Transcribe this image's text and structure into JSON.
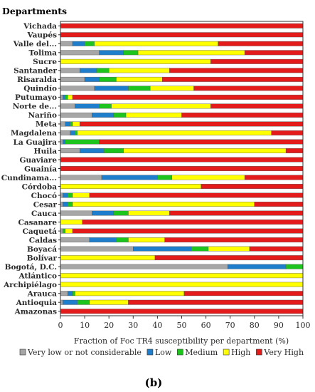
{
  "chart_data": {
    "type": "bar",
    "stacked": true,
    "orientation": "horizontal",
    "title": "Departments",
    "xlabel": "Fraction of Foc TR4 susceptibility per department (%)",
    "xlim": [
      0,
      100
    ],
    "xticks": [
      0,
      10,
      20,
      30,
      40,
      50,
      60,
      70,
      80,
      90,
      100
    ],
    "legend_position": "bottom",
    "caption": "(b)",
    "categories": [
      "Vichada",
      "Vaupés",
      "Valle del...",
      "Tolima",
      "Sucre",
      "Santander",
      "Risaralda",
      "Quindío",
      "Putumayo",
      "Norte de...",
      "Nariño",
      "Meta",
      "Magdalena",
      "La Guajira",
      "Huila",
      "Guaviare",
      "Guainía",
      "Cundinama...",
      "Córdoba",
      "Chocó",
      "Cesar",
      "Cauca",
      "Casanare",
      "Caquetá",
      "Caldas",
      "Boyacá",
      "Bolívar",
      "Bogotá, D.C.",
      "Atlántico",
      "Archipiélago",
      "Arauca",
      "Antioquia",
      "Amazonas"
    ],
    "series": [
      {
        "name": "Very low or not considerable",
        "color": "#a6a6a6",
        "values": [
          0,
          0,
          5,
          16,
          0,
          8,
          10,
          14,
          1,
          6,
          13,
          2,
          4,
          1,
          8,
          0,
          0,
          17,
          0,
          1,
          1,
          13,
          0,
          1,
          12,
          30,
          0,
          69,
          0,
          0,
          3,
          1,
          0
        ]
      },
      {
        "name": "Low",
        "color": "#1f7ecb",
        "values": [
          0,
          0,
          5,
          10,
          0,
          7,
          6,
          14,
          1,
          10,
          9,
          2,
          2,
          1,
          10,
          0,
          0,
          23,
          0,
          2,
          2,
          9,
          0,
          0,
          11,
          24,
          0,
          24,
          0,
          0,
          2,
          6,
          0
        ]
      },
      {
        "name": "Medium",
        "color": "#1ec41e",
        "values": [
          0,
          0,
          4,
          6,
          0,
          5,
          7,
          9,
          1,
          5,
          5,
          1,
          1,
          14,
          8,
          0,
          0,
          6,
          0,
          2,
          2,
          6,
          0,
          1,
          5,
          7,
          0,
          7,
          0,
          0,
          1,
          5,
          0
        ]
      },
      {
        "name": "High",
        "color": "#ffff00",
        "values": [
          0,
          0,
          51,
          44,
          62,
          25,
          19,
          18,
          2,
          41,
          23,
          3,
          80,
          0,
          67,
          0,
          0,
          30,
          58,
          7,
          75,
          17,
          9,
          3,
          15,
          17,
          39,
          0,
          100,
          100,
          45,
          16,
          0
        ]
      },
      {
        "name": "Very High",
        "color": "#e41b1b",
        "values": [
          100,
          100,
          35,
          24,
          38,
          55,
          58,
          45,
          95,
          38,
          50,
          92,
          13,
          84,
          7,
          100,
          100,
          24,
          42,
          88,
          20,
          55,
          91,
          95,
          57,
          22,
          61,
          0,
          0,
          0,
          49,
          72,
          100
        ]
      }
    ]
  }
}
